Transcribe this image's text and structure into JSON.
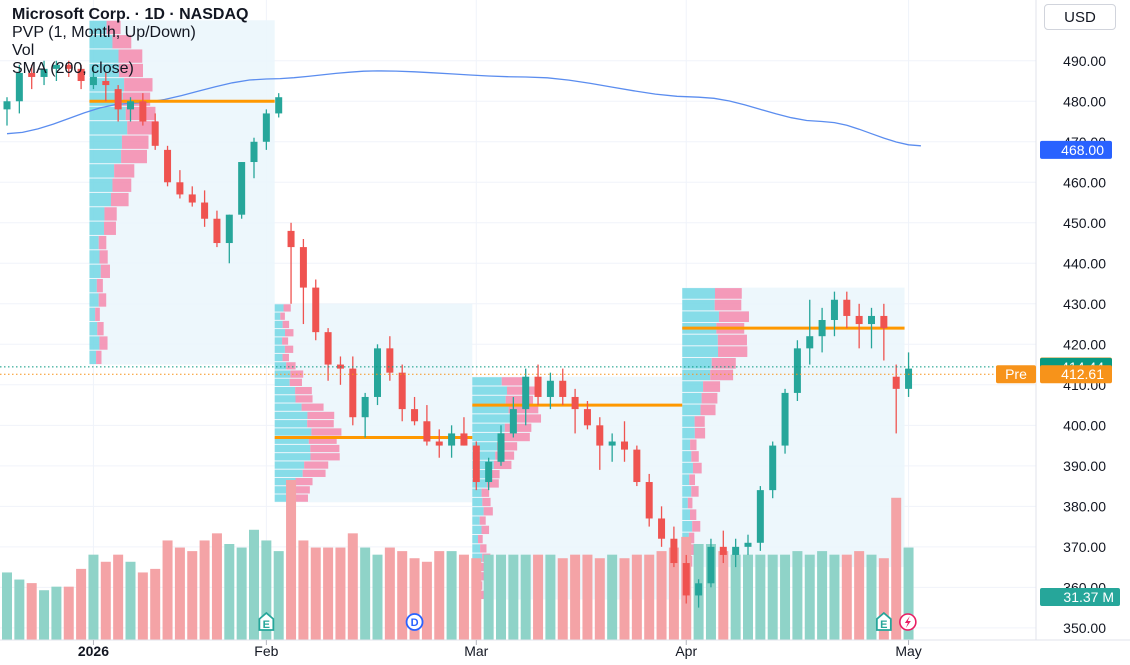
{
  "legend": {
    "title": "Microsoft Corp. · 1D · NASDAQ",
    "line2": "PVP (1, Month, Up/Down)",
    "line3": "Vol",
    "line4": "SMA (200, close)"
  },
  "currency": "USD",
  "colors": {
    "up": "#26a69a",
    "down": "#ef5350",
    "vol_up": "#8fd3c8",
    "vol_down": "#f4a3a6",
    "sma": "#5b8def",
    "poc": "#ff9800",
    "profile_up": "#7ad8e6",
    "profile_down": "#f48fb1",
    "profile_bg": "#eaf6fb",
    "price_tag": "#f7931a",
    "last_tag": "#089981",
    "sma_tag": "#2962ff",
    "vol_tag": "#26a69a"
  },
  "chart_data": {
    "type": "candlestick",
    "ylim": [
      347,
      505
    ],
    "y_ticks": [
      350,
      360,
      370,
      380,
      390,
      400,
      410,
      420,
      430,
      440,
      450,
      460,
      470,
      480,
      490
    ],
    "y_tick_labels": [
      "350.00",
      "360.00",
      "370.00",
      "380.00",
      "390.00",
      "400.00",
      "410.00",
      "420.00",
      "430.00",
      "440.00",
      "450.00",
      "460.00",
      "470.00",
      "480.00",
      "490.00"
    ],
    "x_labels": [
      {
        "label": "2026",
        "bar": 7,
        "bold": true
      },
      {
        "label": "Feb",
        "bar": 21
      },
      {
        "label": "Mar",
        "bar": 38
      },
      {
        "label": "Apr",
        "bar": 55
      },
      {
        "label": "May",
        "bar": 73
      }
    ],
    "ohlc": [
      [
        478,
        481,
        474,
        480
      ],
      [
        480,
        489,
        477,
        487
      ],
      [
        487,
        489,
        483,
        486
      ],
      [
        486,
        490,
        484,
        488
      ],
      [
        488,
        490,
        485,
        489
      ],
      [
        489,
        490,
        486,
        488
      ],
      [
        488,
        489,
        483,
        485
      ],
      [
        484,
        489,
        483,
        486
      ],
      [
        485,
        487,
        480,
        484
      ],
      [
        483,
        484,
        475,
        478
      ],
      [
        478,
        481,
        475,
        480
      ],
      [
        480,
        482,
        474,
        475
      ],
      [
        475,
        477,
        468,
        469
      ],
      [
        468,
        469,
        459,
        460
      ],
      [
        460,
        463,
        456,
        457
      ],
      [
        457,
        459,
        454,
        455
      ],
      [
        455,
        458,
        449,
        451
      ],
      [
        451,
        453,
        444,
        445
      ],
      [
        445,
        452,
        440,
        452
      ],
      [
        452,
        465,
        451,
        465
      ],
      [
        465,
        471,
        461,
        470
      ],
      [
        470,
        478,
        468,
        477
      ],
      [
        477,
        482,
        476,
        481
      ],
      [
        448,
        450,
        430,
        444
      ],
      [
        444,
        446,
        425,
        434
      ],
      [
        434,
        436,
        421,
        423
      ],
      [
        423,
        424,
        411,
        415
      ],
      [
        415,
        417,
        410,
        414
      ],
      [
        414,
        417,
        400,
        402
      ],
      [
        402,
        408,
        397,
        407
      ],
      [
        407,
        420,
        405,
        419
      ],
      [
        419,
        422,
        411,
        413
      ],
      [
        413,
        415,
        401,
        404
      ],
      [
        404,
        407,
        400,
        401
      ],
      [
        401,
        405,
        395,
        396
      ],
      [
        396,
        399,
        392,
        395
      ],
      [
        395,
        400,
        392,
        398
      ],
      [
        398,
        402,
        395,
        395
      ],
      [
        395,
        396,
        384,
        386
      ],
      [
        386,
        392,
        384,
        391
      ],
      [
        391,
        400,
        390,
        398
      ],
      [
        398,
        407,
        397,
        404
      ],
      [
        404,
        414,
        400,
        412
      ],
      [
        412,
        415,
        405,
        407
      ],
      [
        407,
        413,
        404,
        411
      ],
      [
        411,
        414,
        405,
        407
      ],
      [
        407,
        409,
        398,
        404
      ],
      [
        404,
        406,
        399,
        400
      ],
      [
        400,
        402,
        389,
        395
      ],
      [
        395,
        398,
        391,
        396
      ],
      [
        396,
        401,
        391,
        394
      ],
      [
        394,
        395,
        385,
        386
      ],
      [
        386,
        388,
        375,
        377
      ],
      [
        377,
        380,
        370,
        372
      ],
      [
        372,
        375,
        365,
        366
      ],
      [
        366,
        368,
        356,
        358
      ],
      [
        358,
        362,
        355,
        361
      ],
      [
        361,
        372,
        360,
        370
      ],
      [
        370,
        374,
        366,
        368
      ],
      [
        368,
        372,
        365,
        370
      ],
      [
        370,
        373,
        368,
        371
      ],
      [
        371,
        385,
        369,
        384
      ],
      [
        384,
        396,
        382,
        395
      ],
      [
        395,
        409,
        393,
        408
      ],
      [
        408,
        421,
        406,
        419
      ],
      [
        419,
        431,
        415,
        422
      ],
      [
        422,
        429,
        418,
        426
      ],
      [
        426,
        433,
        422,
        431
      ],
      [
        431,
        433,
        424,
        427
      ],
      [
        427,
        430,
        419,
        425
      ],
      [
        425,
        429,
        419,
        427
      ],
      [
        427,
        430,
        416,
        424
      ],
      [
        412,
        415,
        398,
        409
      ],
      [
        409,
        418,
        407,
        414
      ]
    ],
    "volume_millions": [
      19,
      17,
      16,
      14,
      15,
      15,
      20,
      24,
      22,
      24,
      22,
      19,
      20,
      28,
      26,
      25,
      28,
      30,
      27,
      26,
      31,
      28,
      25,
      45,
      28,
      26,
      26,
      26,
      30,
      26,
      24,
      26,
      25,
      23,
      22,
      25,
      25,
      24,
      23,
      24,
      24,
      24,
      24,
      24,
      24,
      23,
      24,
      24,
      23,
      24,
      23,
      24,
      24,
      25,
      26,
      29,
      27,
      27,
      25,
      24,
      24,
      24,
      24,
      24,
      25,
      24,
      25,
      24,
      24,
      25,
      24,
      23,
      40,
      26
    ],
    "sma": [
      [
        0,
        472
      ],
      [
        10,
        479.5
      ],
      [
        21,
        485.5
      ],
      [
        30,
        487.5
      ],
      [
        42,
        486
      ],
      [
        56,
        481
      ],
      [
        66,
        475
      ],
      [
        74,
        469
      ]
    ],
    "volume_profiles": [
      {
        "from": 7,
        "to": 22,
        "top": 500,
        "bottom": 415,
        "poc": 480
      },
      {
        "from": 22,
        "to": 38,
        "top": 430,
        "bottom": 381,
        "poc": 397
      },
      {
        "from": 38,
        "to": 55,
        "top": 412,
        "bottom": 357,
        "poc": 405
      },
      {
        "from": 55,
        "to": 73,
        "top": 434,
        "bottom": 365,
        "poc": 424
      }
    ],
    "events": [
      {
        "bar": 21,
        "letter": "E"
      },
      {
        "bar": 33,
        "letter": "D"
      },
      {
        "bar": 71,
        "letter": "E"
      }
    ],
    "price_lines": [
      {
        "value": 414.44,
        "color": "#089981"
      },
      {
        "value": 412.61,
        "color": "#f7931a"
      }
    ],
    "tags": [
      {
        "label": "468.00",
        "value": 468.0,
        "kind": "sma"
      },
      {
        "label": "414.51",
        "value": 414.51,
        "kind": "price"
      },
      {
        "label": "414.44",
        "value": 414.44,
        "kind": "last"
      },
      {
        "label": "412.61",
        "value": 412.61,
        "kind": "pre",
        "prefix": "Pre"
      }
    ],
    "volume_tag": "31.37 M"
  }
}
